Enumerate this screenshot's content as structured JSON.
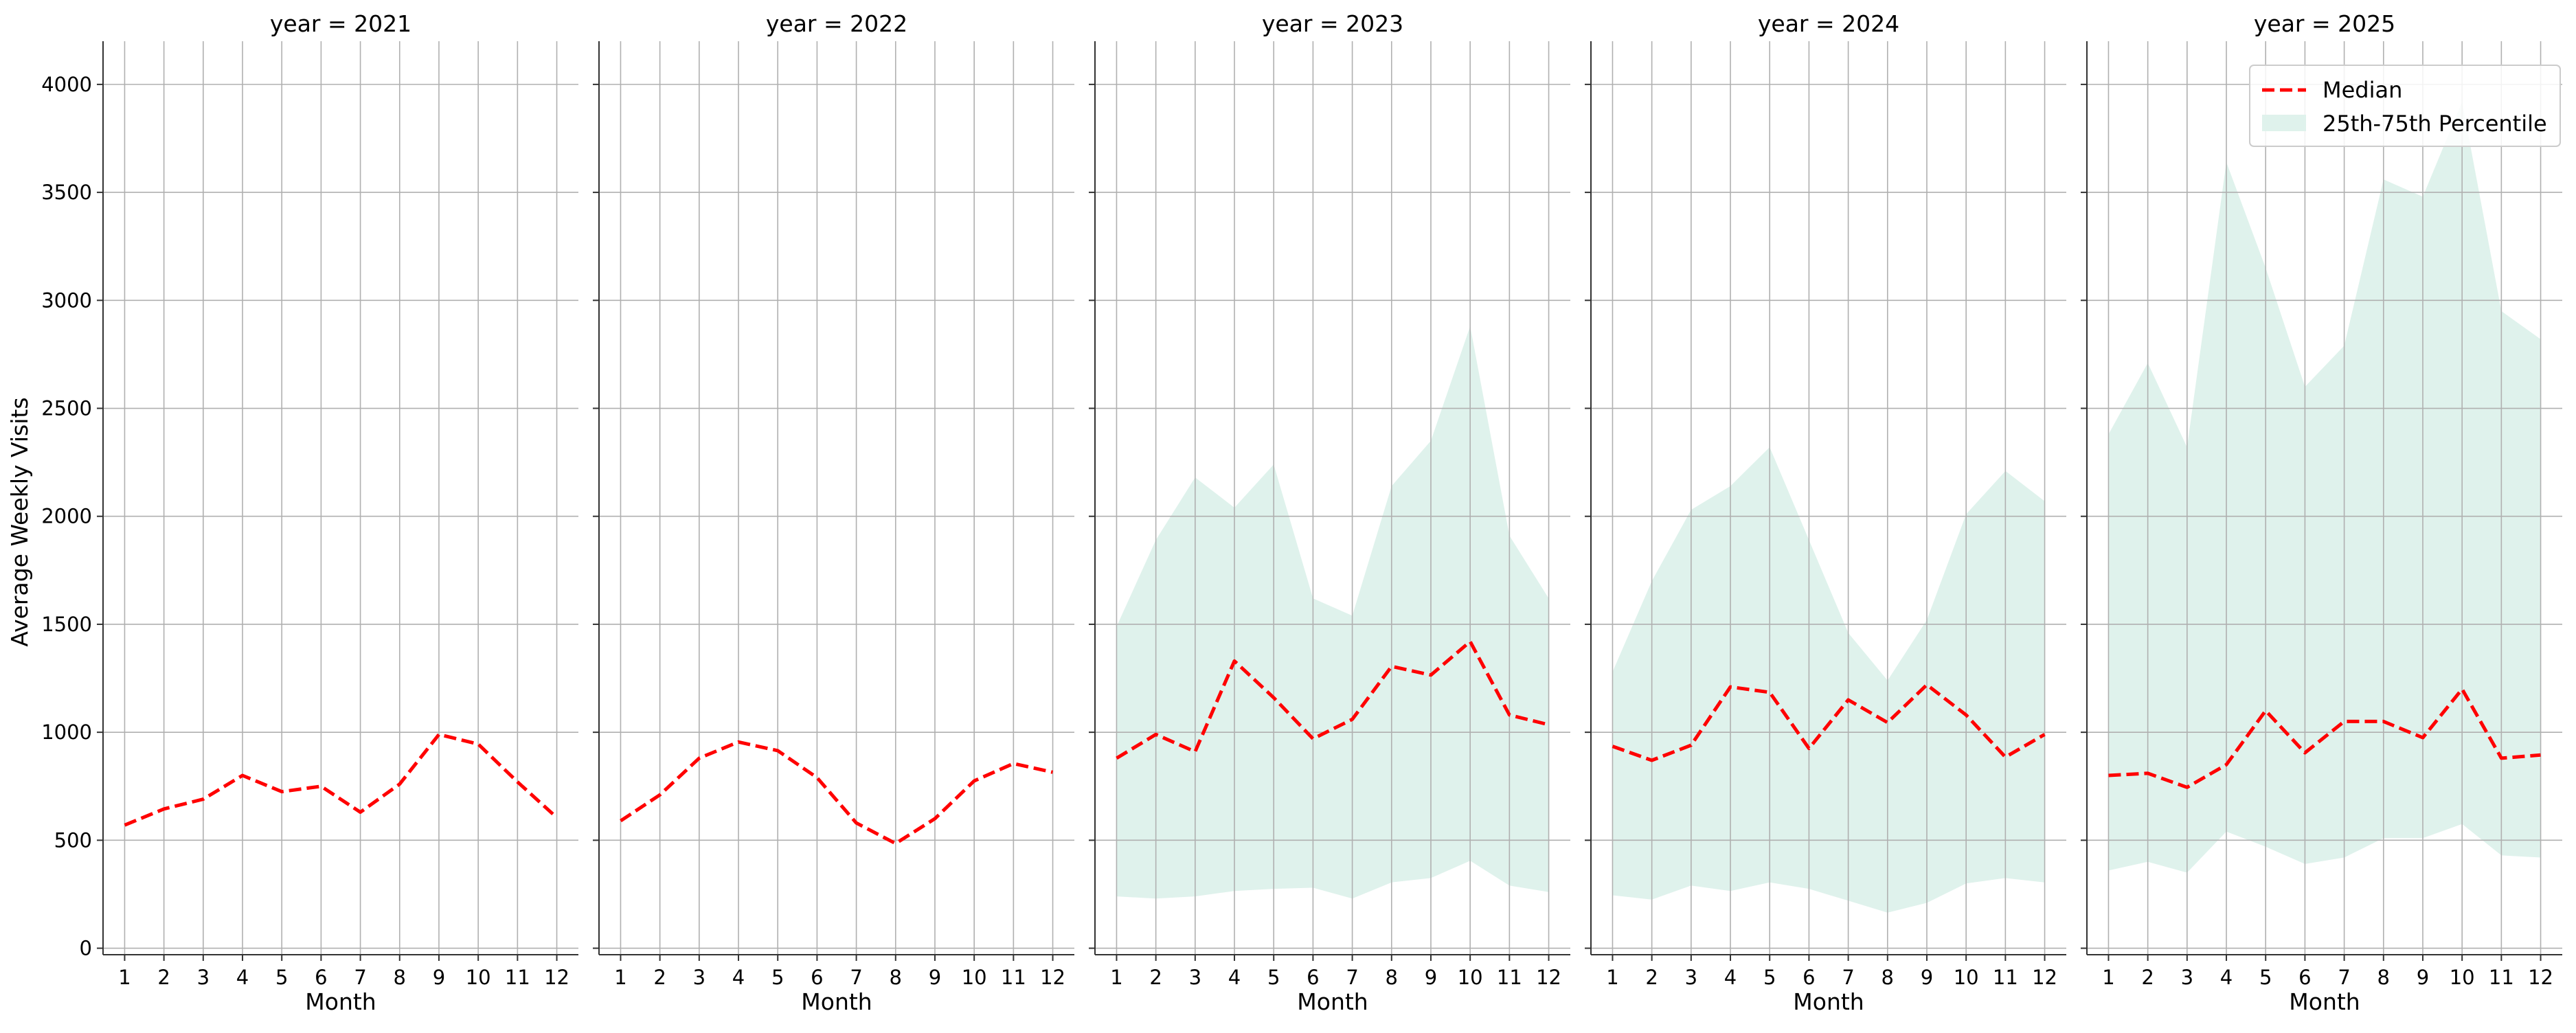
{
  "chart_data": {
    "type": "line",
    "ylabel": "Average Weekly Visits",
    "xlabel": "Month",
    "x": [
      1,
      2,
      3,
      4,
      5,
      6,
      7,
      8,
      9,
      10,
      11,
      12
    ],
    "xticks": [
      "1",
      "2",
      "3",
      "4",
      "5",
      "6",
      "7",
      "8",
      "9",
      "10",
      "11",
      "12"
    ],
    "ylim": [
      -30,
      4200
    ],
    "yticks": [
      0,
      500,
      1000,
      1500,
      2000,
      2500,
      3000,
      3500,
      4000
    ],
    "ytick_labels": [
      "0",
      "500",
      "1000",
      "1500",
      "2000",
      "2500",
      "3000",
      "3500",
      "4000"
    ],
    "grid": true,
    "legend": {
      "placement": "top-right of last panel",
      "entries": [
        "Median",
        "25th-75th Percentile"
      ]
    },
    "colors": {
      "median": "#ff0000",
      "band": "#dff2ec",
      "grid": "#b0b0b0"
    },
    "panels": [
      {
        "title": "year = 2021",
        "series": [
          {
            "name": "Median",
            "values": [
              570,
              645,
              690,
              800,
              725,
              750,
              630,
              760,
              990,
              945,
              770,
              605
            ]
          }
        ]
      },
      {
        "title": "year = 2022",
        "series": [
          {
            "name": "Median",
            "values": [
              590,
              710,
              880,
              955,
              915,
              790,
              580,
              485,
              600,
              775,
              855,
              815
            ]
          }
        ]
      },
      {
        "title": "year = 2023",
        "series": [
          {
            "name": "Median",
            "values": [
              880,
              990,
              910,
              1330,
              1160,
              970,
              1060,
              1305,
              1265,
              1420,
              1080,
              1035
            ]
          },
          {
            "name": "25th-75th Percentile",
            "lower": [
              240,
              230,
              240,
              265,
              275,
              280,
              230,
              305,
              325,
              405,
              290,
              260
            ],
            "upper": [
              1490,
              1890,
              2180,
              2040,
              2240,
              1620,
              1540,
              2140,
              2350,
              2880,
              1910,
              1620
            ]
          }
        ]
      },
      {
        "title": "year = 2024",
        "series": [
          {
            "name": "Median",
            "values": [
              935,
              870,
              940,
              1210,
              1185,
              925,
              1150,
              1045,
              1220,
              1080,
              885,
              990
            ]
          },
          {
            "name": "25th-75th Percentile",
            "lower": [
              245,
              225,
              290,
              265,
              305,
              275,
              220,
              165,
              210,
              300,
              325,
              305
            ],
            "upper": [
              1280,
              1700,
              2030,
              2140,
              2320,
              1890,
              1460,
              1240,
              1520,
              2010,
              2210,
              2070
            ]
          }
        ]
      },
      {
        "title": "year = 2025",
        "series": [
          {
            "name": "Median",
            "values": [
              800,
              810,
              745,
              850,
              1100,
              905,
              1050,
              1050,
              975,
              1200,
              880,
              895
            ]
          },
          {
            "name": "25th-75th Percentile",
            "lower": [
              360,
              400,
              350,
              540,
              470,
              390,
              420,
              510,
              510,
              575,
              430,
              420
            ],
            "upper": [
              2380,
              2710,
              2320,
              3640,
              3150,
              2600,
              2790,
              3560,
              3480,
              3920,
              2950,
              2820
            ]
          }
        ]
      }
    ]
  }
}
